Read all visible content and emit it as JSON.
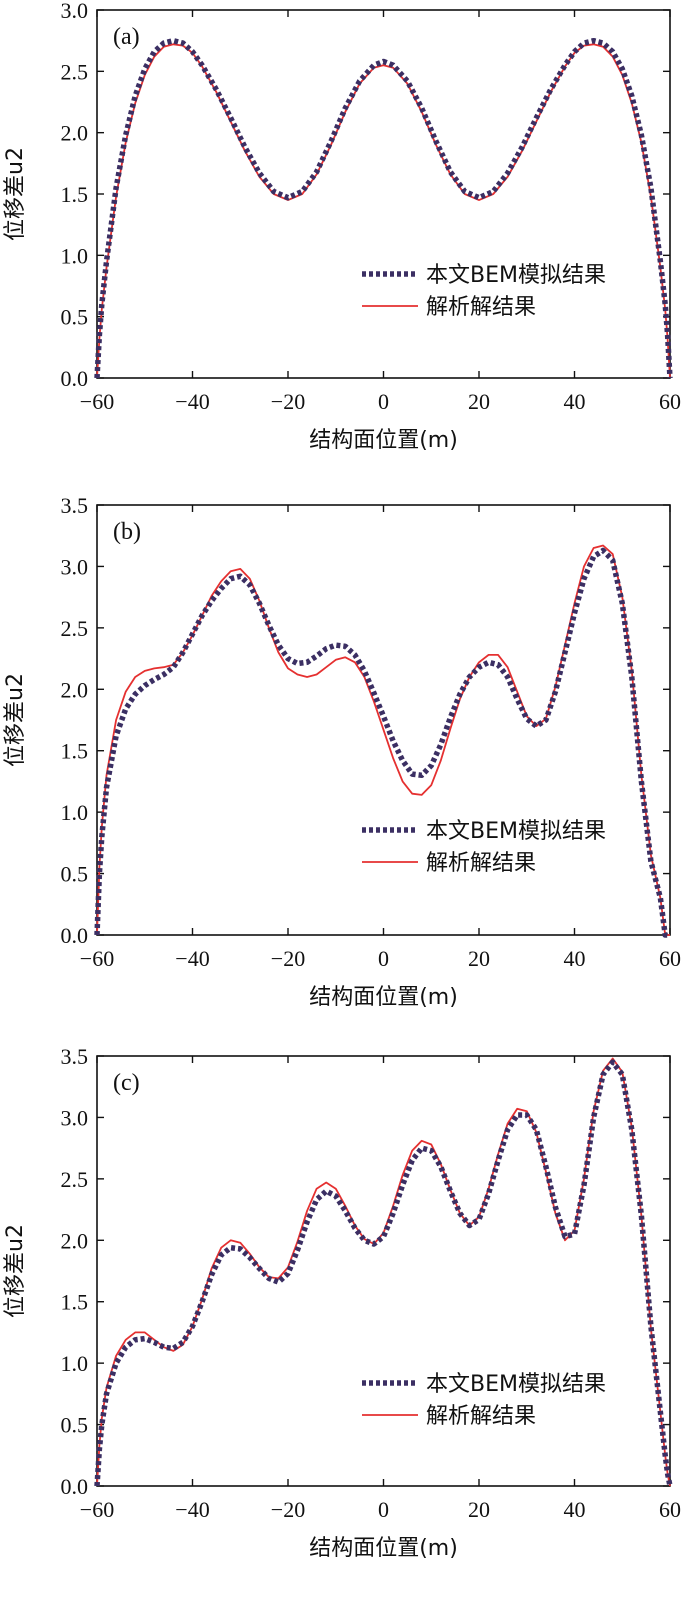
{
  "figure": {
    "panels": [
      {
        "tag": "(a)",
        "xlabel": "结构面位置(m)",
        "ylabel": "位移差u2",
        "legend": {
          "series_1": "本文BEM模拟结果",
          "series_2": "解析解结果"
        },
        "xticks": [
          "−60",
          "−40",
          "−20",
          "0",
          "20",
          "40",
          "60"
        ],
        "yticks": [
          "0.0",
          "0.5",
          "1.0",
          "1.5",
          "2.0",
          "2.5",
          "3.0"
        ]
      },
      {
        "tag": "(b)",
        "xlabel": "结构面位置(m)",
        "ylabel": "位移差u2",
        "legend": {
          "series_1": "本文BEM模拟结果",
          "series_2": "解析解结果"
        },
        "xticks": [
          "−60",
          "−40",
          "−20",
          "0",
          "20",
          "40",
          "60"
        ],
        "yticks": [
          "0.0",
          "0.5",
          "1.0",
          "1.5",
          "2.0",
          "2.5",
          "3.0",
          "3.5"
        ]
      },
      {
        "tag": "(c)",
        "xlabel": "结构面位置(m)",
        "ylabel": "位移差u2",
        "legend": {
          "series_1": "本文BEM模拟结果",
          "series_2": "解析解结果"
        },
        "xticks": [
          "−60",
          "−40",
          "−20",
          "0",
          "20",
          "40",
          "60"
        ],
        "yticks": [
          "0.0",
          "0.5",
          "1.0",
          "1.5",
          "2.0",
          "2.5",
          "3.0",
          "3.5"
        ]
      }
    ]
  },
  "colors": {
    "bem": "#3b2f63",
    "analytic": "#e53030",
    "axis": "#111111"
  },
  "chart_data": [
    {
      "type": "line",
      "title": "(a)",
      "xlabel": "结构面位置(m)",
      "ylabel": "位移差u2",
      "xlim": [
        -60,
        60
      ],
      "ylim": [
        0,
        3.0
      ],
      "grid": false,
      "legend_position": "center-right",
      "series": [
        {
          "name": "本文BEM模拟结果",
          "style": "dotted",
          "x": [
            -60,
            -59.5,
            -59,
            -58,
            -56,
            -54,
            -52,
            -50,
            -48,
            -46,
            -44,
            -42,
            -40,
            -38,
            -35,
            -32,
            -29,
            -26,
            -23,
            -20,
            -17,
            -14,
            -11,
            -8,
            -5,
            -2,
            0,
            2,
            5,
            8,
            11,
            14,
            17,
            20,
            23,
            26,
            29,
            32,
            35,
            38,
            40,
            42,
            44,
            46,
            48,
            50,
            52,
            54,
            56,
            58,
            59,
            59.5,
            60
          ],
          "y": [
            0.0,
            0.35,
            0.6,
            0.95,
            1.55,
            1.98,
            2.3,
            2.52,
            2.66,
            2.73,
            2.75,
            2.73,
            2.66,
            2.55,
            2.35,
            2.12,
            1.88,
            1.67,
            1.52,
            1.47,
            1.52,
            1.68,
            1.93,
            2.2,
            2.42,
            2.55,
            2.58,
            2.55,
            2.42,
            2.2,
            1.93,
            1.68,
            1.52,
            1.47,
            1.52,
            1.67,
            1.88,
            2.12,
            2.35,
            2.55,
            2.66,
            2.73,
            2.75,
            2.73,
            2.66,
            2.52,
            2.3,
            1.98,
            1.55,
            0.95,
            0.6,
            0.35,
            0.0
          ]
        },
        {
          "name": "解析解结果",
          "style": "solid",
          "x": [
            -60,
            -59.5,
            -59,
            -58,
            -56,
            -54,
            -52,
            -50,
            -48,
            -46,
            -44,
            -42,
            -40,
            -38,
            -35,
            -32,
            -29,
            -26,
            -23,
            -20,
            -17,
            -14,
            -11,
            -8,
            -5,
            -2,
            0,
            2,
            5,
            8,
            11,
            14,
            17,
            20,
            23,
            26,
            29,
            32,
            35,
            38,
            40,
            42,
            44,
            46,
            48,
            50,
            52,
            54,
            56,
            58,
            59,
            59.5,
            60
          ],
          "y": [
            0.0,
            0.32,
            0.56,
            0.9,
            1.48,
            1.92,
            2.24,
            2.47,
            2.62,
            2.7,
            2.72,
            2.71,
            2.65,
            2.54,
            2.33,
            2.09,
            1.85,
            1.64,
            1.5,
            1.45,
            1.5,
            1.66,
            1.9,
            2.17,
            2.4,
            2.53,
            2.55,
            2.53,
            2.4,
            2.17,
            1.9,
            1.66,
            1.5,
            1.45,
            1.5,
            1.64,
            1.85,
            2.09,
            2.33,
            2.54,
            2.65,
            2.71,
            2.72,
            2.7,
            2.62,
            2.47,
            2.24,
            1.92,
            1.48,
            0.9,
            0.56,
            0.32,
            0.0
          ]
        }
      ]
    },
    {
      "type": "line",
      "title": "(b)",
      "xlabel": "结构面位置(m)",
      "ylabel": "位移差u2",
      "xlim": [
        -60,
        60
      ],
      "ylim": [
        0,
        3.5
      ],
      "grid": false,
      "legend_position": "center-right",
      "series": [
        {
          "name": "本文BEM模拟结果",
          "style": "dotted",
          "x": [
            -60,
            -59.5,
            -59,
            -58,
            -56,
            -54,
            -52,
            -50,
            -48,
            -46,
            -44,
            -42,
            -40,
            -38,
            -36,
            -34,
            -32,
            -30,
            -28,
            -26,
            -24,
            -22,
            -20,
            -18,
            -16,
            -14,
            -12,
            -10,
            -8,
            -6,
            -4,
            -2,
            0,
            2,
            4,
            6,
            8,
            10,
            12,
            14,
            16,
            18,
            20,
            22,
            24,
            26,
            28,
            30,
            32,
            34,
            36,
            38,
            40,
            42,
            44,
            46,
            48,
            50,
            52,
            54,
            56,
            58,
            59,
            59.5,
            60
          ],
          "y": [
            0.0,
            0.5,
            0.8,
            1.2,
            1.62,
            1.84,
            1.96,
            2.03,
            2.08,
            2.12,
            2.18,
            2.3,
            2.45,
            2.6,
            2.72,
            2.82,
            2.9,
            2.92,
            2.85,
            2.7,
            2.52,
            2.36,
            2.25,
            2.21,
            2.22,
            2.27,
            2.33,
            2.36,
            2.35,
            2.28,
            2.15,
            1.97,
            1.78,
            1.58,
            1.42,
            1.31,
            1.3,
            1.38,
            1.55,
            1.77,
            1.96,
            2.1,
            2.18,
            2.22,
            2.2,
            2.1,
            1.92,
            1.76,
            1.7,
            1.75,
            1.98,
            2.3,
            2.62,
            2.9,
            3.08,
            3.13,
            3.05,
            2.7,
            2.1,
            1.25,
            0.6,
            0.3,
            0.0,
            0.0,
            0.0
          ]
        },
        {
          "name": "解析解结果",
          "style": "solid",
          "x": [
            -60,
            -59.5,
            -59,
            -58,
            -56,
            -54,
            -52,
            -50,
            -48,
            -46,
            -44,
            -42,
            -40,
            -38,
            -36,
            -34,
            -32,
            -30,
            -28,
            -26,
            -24,
            -22,
            -20,
            -18,
            -16,
            -14,
            -12,
            -10,
            -8,
            -6,
            -4,
            -2,
            0,
            2,
            4,
            6,
            8,
            10,
            12,
            14,
            16,
            18,
            20,
            22,
            24,
            26,
            28,
            30,
            32,
            34,
            36,
            38,
            40,
            42,
            44,
            46,
            48,
            50,
            52,
            54,
            56,
            58,
            59,
            59.5,
            60
          ],
          "y": [
            0.0,
            0.55,
            0.88,
            1.3,
            1.75,
            1.98,
            2.1,
            2.15,
            2.17,
            2.18,
            2.2,
            2.3,
            2.44,
            2.6,
            2.76,
            2.88,
            2.96,
            2.98,
            2.9,
            2.72,
            2.5,
            2.3,
            2.17,
            2.12,
            2.1,
            2.12,
            2.18,
            2.24,
            2.26,
            2.22,
            2.1,
            1.9,
            1.67,
            1.44,
            1.25,
            1.15,
            1.14,
            1.22,
            1.42,
            1.68,
            1.92,
            2.1,
            2.22,
            2.28,
            2.28,
            2.18,
            1.98,
            1.78,
            1.7,
            1.76,
            2.02,
            2.36,
            2.7,
            3.0,
            3.15,
            3.17,
            3.1,
            2.75,
            2.15,
            1.3,
            0.65,
            0.3,
            0.0,
            0.0,
            0.0
          ]
        }
      ]
    },
    {
      "type": "line",
      "title": "(c)",
      "xlabel": "结构面位置(m)",
      "ylabel": "位移差u2",
      "xlim": [
        -60,
        60
      ],
      "ylim": [
        0,
        3.5
      ],
      "grid": false,
      "legend_position": "bottom-right",
      "series": [
        {
          "name": "本文BEM模拟结果",
          "style": "dotted",
          "x": [
            -60,
            -59.5,
            -59,
            -58,
            -56,
            -54,
            -52,
            -50,
            -48,
            -46,
            -44,
            -42,
            -40,
            -38,
            -36,
            -34,
            -32,
            -30,
            -28,
            -26,
            -24,
            -22,
            -20,
            -18,
            -16,
            -14,
            -12,
            -10,
            -8,
            -6,
            -4,
            -2,
            0,
            2,
            4,
            6,
            8,
            10,
            12,
            14,
            16,
            18,
            20,
            22,
            24,
            26,
            28,
            30,
            32,
            34,
            36,
            38,
            40,
            42,
            44,
            46,
            48,
            50,
            52,
            54,
            56,
            58,
            59,
            59.5,
            60
          ],
          "y": [
            0.0,
            0.3,
            0.5,
            0.75,
            1.0,
            1.13,
            1.19,
            1.2,
            1.17,
            1.13,
            1.12,
            1.17,
            1.3,
            1.5,
            1.72,
            1.88,
            1.94,
            1.93,
            1.86,
            1.77,
            1.69,
            1.66,
            1.73,
            1.92,
            2.15,
            2.33,
            2.4,
            2.36,
            2.24,
            2.1,
            2.0,
            1.97,
            2.03,
            2.22,
            2.45,
            2.65,
            2.75,
            2.73,
            2.6,
            2.4,
            2.22,
            2.12,
            2.17,
            2.38,
            2.65,
            2.9,
            3.02,
            3.02,
            2.9,
            2.6,
            2.27,
            2.03,
            2.05,
            2.45,
            3.0,
            3.35,
            3.45,
            3.35,
            2.9,
            2.2,
            1.3,
            0.6,
            0.25,
            0.1,
            0.0
          ]
        },
        {
          "name": "解析解结果",
          "style": "solid",
          "x": [
            -60,
            -59.5,
            -59,
            -58,
            -56,
            -54,
            -52,
            -50,
            -48,
            -46,
            -44,
            -42,
            -40,
            -38,
            -36,
            -34,
            -32,
            -30,
            -28,
            -26,
            -24,
            -22,
            -20,
            -18,
            -16,
            -14,
            -12,
            -10,
            -8,
            -6,
            -4,
            -2,
            0,
            2,
            4,
            6,
            8,
            10,
            12,
            14,
            16,
            18,
            20,
            22,
            24,
            26,
            28,
            30,
            32,
            34,
            36,
            38,
            40,
            42,
            44,
            46,
            48,
            50,
            52,
            54,
            56,
            58,
            59,
            59.5,
            60
          ],
          "y": [
            0.0,
            0.33,
            0.55,
            0.8,
            1.06,
            1.19,
            1.25,
            1.25,
            1.19,
            1.13,
            1.1,
            1.15,
            1.3,
            1.52,
            1.77,
            1.94,
            2.0,
            1.98,
            1.89,
            1.78,
            1.7,
            1.69,
            1.78,
            1.99,
            2.24,
            2.42,
            2.47,
            2.42,
            2.28,
            2.12,
            2.01,
            1.97,
            2.06,
            2.28,
            2.53,
            2.73,
            2.81,
            2.78,
            2.62,
            2.41,
            2.22,
            2.12,
            2.19,
            2.42,
            2.7,
            2.95,
            3.07,
            3.05,
            2.88,
            2.56,
            2.22,
            2.0,
            2.08,
            2.5,
            3.05,
            3.38,
            3.48,
            3.37,
            2.92,
            2.2,
            1.28,
            0.6,
            0.25,
            0.1,
            0.0
          ]
        }
      ]
    }
  ]
}
